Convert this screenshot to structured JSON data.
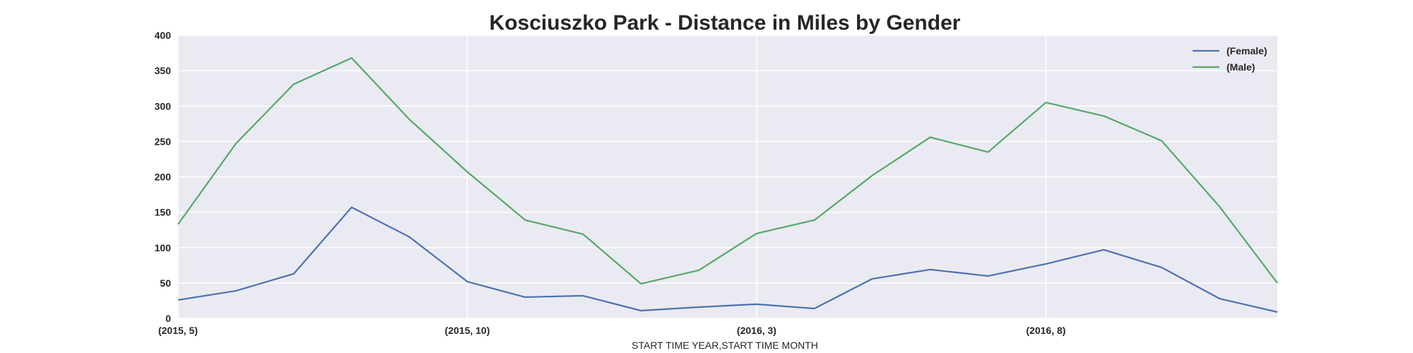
{
  "chart_data": {
    "type": "line",
    "title": "Kosciuszko Park - Distance in Miles by Gender",
    "xlabel": "START TIME YEAR,START TIME MONTH",
    "ylabel": "",
    "x": [
      "(2015, 5)",
      "(2015, 6)",
      "(2015, 7)",
      "(2015, 8)",
      "(2015, 9)",
      "(2015, 10)",
      "(2015, 11)",
      "(2015, 12)",
      "(2016, 1)",
      "(2016, 2)",
      "(2016, 3)",
      "(2016, 4)",
      "(2016, 5)",
      "(2016, 6)",
      "(2016, 7)",
      "(2016, 8)",
      "(2016, 9)",
      "(2016, 10)",
      "(2016, 11)",
      "(2016, 12)"
    ],
    "xticks": [
      "(2015, 5)",
      "(2015, 10)",
      "(2016, 3)",
      "(2016, 8)"
    ],
    "ylim": [
      0,
      400
    ],
    "yticks": [
      0,
      50,
      100,
      150,
      200,
      250,
      300,
      350,
      400
    ],
    "grid": true,
    "legend_position": "top-right",
    "series": [
      {
        "name": "(Female)",
        "color": "#4c72b0",
        "values": [
          26,
          39,
          63,
          157,
          115,
          52,
          30,
          32,
          11,
          16,
          20,
          14,
          56,
          69,
          60,
          77,
          97,
          72,
          28,
          9
        ]
      },
      {
        "name": "(Male)",
        "color": "#55a868",
        "values": [
          133,
          247,
          331,
          368,
          281,
          207,
          139,
          119,
          49,
          68,
          120,
          139,
          202,
          256,
          235,
          305,
          286,
          251,
          158,
          50
        ]
      }
    ]
  },
  "colors": {
    "plot_background": "#eaeaf2",
    "grid": "#ffffff",
    "text": "#262626"
  }
}
